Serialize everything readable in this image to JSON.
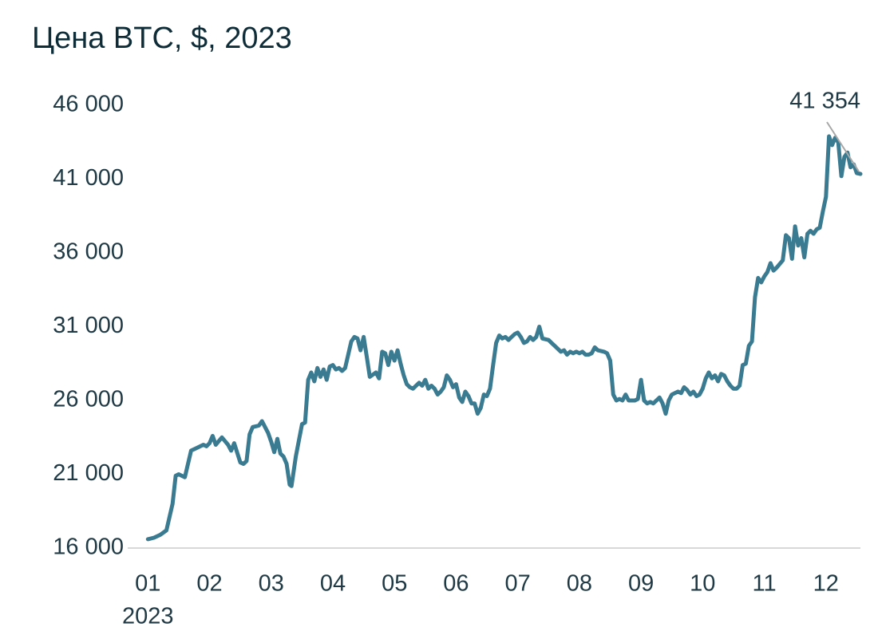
{
  "chart_data": {
    "type": "line",
    "title": "Цена BTC, $, 2023",
    "color": "#3a7b91",
    "annotation": "41 354",
    "year_label": "2023",
    "xlim": [
      0.75,
      12.56
    ],
    "xticks": [
      {
        "value": 1,
        "label": "01"
      },
      {
        "value": 2,
        "label": "02"
      },
      {
        "value": 3,
        "label": "03"
      },
      {
        "value": 4,
        "label": "04"
      },
      {
        "value": 5,
        "label": "05"
      },
      {
        "value": 6,
        "label": "06"
      },
      {
        "value": 7,
        "label": "07"
      },
      {
        "value": 8,
        "label": "08"
      },
      {
        "value": 9,
        "label": "09"
      },
      {
        "value": 10,
        "label": "10"
      },
      {
        "value": 11,
        "label": "11"
      },
      {
        "value": 12,
        "label": "12"
      }
    ],
    "ylim": [
      16000,
      46000
    ],
    "yticks": [
      {
        "value": 16000,
        "label": "16 000"
      },
      {
        "value": 21000,
        "label": "21 000"
      },
      {
        "value": 26000,
        "label": "26 000"
      },
      {
        "value": 31000,
        "label": "31 000"
      },
      {
        "value": 36000,
        "label": "36 000"
      },
      {
        "value": 41000,
        "label": "41 000"
      },
      {
        "value": 46000,
        "label": "46 000"
      }
    ],
    "x": [
      1,
      1.1,
      1.2,
      1.3,
      1.4,
      1.45,
      1.5,
      1.6,
      1.7,
      1.8,
      1.9,
      1.95,
      2,
      2.05,
      2.1,
      2.2,
      2.3,
      2.35,
      2.4,
      2.5,
      2.55,
      2.6,
      2.65,
      2.7,
      2.8,
      2.85,
      2.95,
      3,
      3.05,
      3.1,
      3.15,
      3.2,
      3.25,
      3.3,
      3.33,
      3.4,
      3.5,
      3.55,
      3.6,
      3.65,
      3.7,
      3.75,
      3.8,
      3.85,
      3.9,
      3.95,
      4,
      4.05,
      4.1,
      4.15,
      4.2,
      4.3,
      4.35,
      4.4,
      4.45,
      4.5,
      4.55,
      4.6,
      4.7,
      4.75,
      4.8,
      4.85,
      4.9,
      4.95,
      5,
      5.05,
      5.1,
      5.15,
      5.2,
      5.25,
      5.3,
      5.4,
      5.45,
      5.5,
      5.55,
      5.6,
      5.65,
      5.7,
      5.75,
      5.8,
      5.85,
      5.9,
      5.95,
      6,
      6.05,
      6.1,
      6.15,
      6.2,
      6.25,
      6.3,
      6.35,
      6.4,
      6.45,
      6.5,
      6.55,
      6.6,
      6.65,
      6.7,
      6.75,
      6.8,
      6.85,
      6.9,
      6.95,
      7,
      7.05,
      7.1,
      7.15,
      7.2,
      7.25,
      7.3,
      7.35,
      7.4,
      7.5,
      7.55,
      7.6,
      7.7,
      7.75,
      7.8,
      7.85,
      7.9,
      7.95,
      8,
      8.05,
      8.1,
      8.15,
      8.2,
      8.25,
      8.3,
      8.4,
      8.45,
      8.5,
      8.55,
      8.6,
      8.65,
      8.7,
      8.75,
      8.8,
      8.9,
      8.95,
      9,
      9.05,
      9.1,
      9.15,
      9.2,
      9.3,
      9.35,
      9.4,
      9.45,
      9.5,
      9.6,
      9.65,
      9.7,
      9.75,
      9.8,
      9.85,
      9.9,
      9.95,
      10,
      10.05,
      10.1,
      10.15,
      10.2,
      10.25,
      10.3,
      10.35,
      10.4,
      10.45,
      10.5,
      10.55,
      10.6,
      10.65,
      10.7,
      10.75,
      10.8,
      10.85,
      10.9,
      10.95,
      11,
      11.05,
      11.1,
      11.15,
      11.2,
      11.3,
      11.35,
      11.4,
      11.45,
      11.5,
      11.55,
      11.6,
      11.65,
      11.7,
      11.75,
      11.8,
      11.85,
      11.9,
      11.95,
      12,
      12.05,
      12.1,
      12.15,
      12.2,
      12.25,
      12.3,
      12.35,
      12.4,
      12.45,
      12.5,
      12.56
    ],
    "values": [
      16600,
      16700,
      16900,
      17200,
      19000,
      20900,
      21000,
      20800,
      22600,
      22800,
      23000,
      22900,
      23100,
      23600,
      23000,
      23500,
      23000,
      22600,
      23100,
      21800,
      21700,
      21900,
      23700,
      24200,
      24300,
      24600,
      23800,
      23200,
      22500,
      23400,
      22400,
      22200,
      21700,
      20300,
      20200,
      22200,
      24400,
      24500,
      27400,
      27900,
      27300,
      28200,
      27600,
      28100,
      27400,
      28300,
      28400,
      28100,
      28200,
      28000,
      28200,
      30000,
      30300,
      30200,
      29400,
      30300,
      29000,
      27600,
      27900,
      27500,
      29300,
      29200,
      28400,
      29300,
      28700,
      29400,
      28500,
      27700,
      27100,
      26900,
      26800,
      27200,
      27000,
      27400,
      26800,
      27000,
      26800,
      26400,
      26600,
      26900,
      27700,
      27400,
      26900,
      27100,
      26200,
      25900,
      26600,
      26300,
      25800,
      25800,
      25100,
      25500,
      26400,
      26300,
      26800,
      28400,
      29900,
      30400,
      30200,
      30300,
      30100,
      30300,
      30500,
      30600,
      30300,
      29900,
      30000,
      30300,
      30100,
      30300,
      31000,
      30200,
      30100,
      29900,
      29700,
      29300,
      29400,
      29100,
      29300,
      29200,
      29300,
      29200,
      29300,
      29100,
      29100,
      29200,
      29600,
      29400,
      29300,
      29200,
      28700,
      26400,
      26000,
      26100,
      26000,
      26400,
      26000,
      26000,
      26100,
      27400,
      26000,
      25800,
      25900,
      25800,
      26200,
      25800,
      25100,
      26000,
      26400,
      26600,
      26500,
      26900,
      26700,
      26400,
      26600,
      26300,
      26400,
      26800,
      27500,
      27900,
      27500,
      27700,
      27300,
      27800,
      27700,
      27300,
      27000,
      26800,
      26800,
      27000,
      28400,
      28500,
      29700,
      30000,
      33000,
      34300,
      34000,
      34400,
      34700,
      35300,
      34800,
      35000,
      35500,
      37200,
      37000,
      35600,
      37800,
      36500,
      37000,
      35700,
      37300,
      37500,
      37300,
      37600,
      37700,
      38800,
      39800,
      43900,
      43300,
      43800,
      43500,
      41200,
      42500,
      42800,
      41800,
      42000,
      41400,
      41354
    ]
  }
}
